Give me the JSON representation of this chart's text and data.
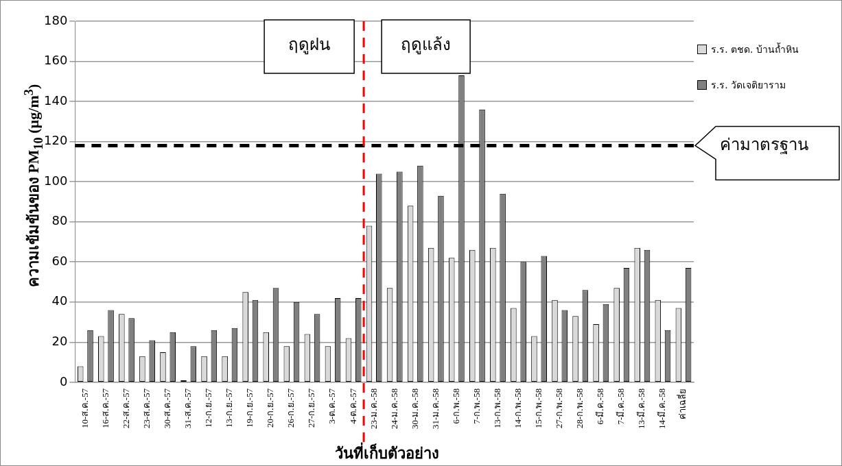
{
  "chart_data": {
    "type": "bar",
    "ylabel": "ความเข้มข้นของ PM$_{10}$ (µg/m$^{3}$)",
    "xlabel": "วันที่เก็บตัวอย่าง",
    "categories": [
      "10-ส.ค.-57",
      "16-ส.ค.-57",
      "22-ส.ค.-57",
      "23-ส.ค.-57",
      "30-ส.ค.-57",
      "31-ส.ค.-57",
      "12-ก.ย.-57",
      "13-ก.ย.-57",
      "19-ก.ย.-57",
      "20-ก.ย.-57",
      "26-ก.ย.-57",
      "27-ก.ย.-57",
      "3-ต.ค.-57",
      "4-ต.ค.-57",
      "23-ม.ค.-58",
      "24-ม.ค.-58",
      "30-ม.ค.-58",
      "31-ม.ค.-58",
      "6-ก.พ.-58",
      "7-ก.พ.-58",
      "13-ก.พ.-58",
      "14-ก.พ.-58",
      "15-ก.พ.-58",
      "27-ก.พ.-58",
      "28-ก.พ.-58",
      "6-มี.ค.-58",
      "7-มี.ค.-58",
      "13-มี.ค.-58",
      "14-มี.ค.-58",
      "ค่าเฉลี่ย"
    ],
    "series": [
      {
        "name": "ร.ร. ตชด. บ้านถ้ำหิน",
        "color": "#d9d9d9",
        "values": [
          8,
          23,
          34,
          13,
          15,
          1,
          13,
          13,
          45,
          25,
          18,
          24,
          18,
          22,
          78,
          47,
          88,
          67,
          62,
          66,
          67,
          37,
          23,
          41,
          33,
          29,
          47,
          67,
          41,
          37
        ]
      },
      {
        "name": "ร.ร. วัดเจติยาราม",
        "color": "#808080",
        "values": [
          26,
          36,
          32,
          21,
          25,
          18,
          26,
          27,
          41,
          47,
          40,
          34,
          42,
          42,
          104,
          105,
          108,
          93,
          153,
          136,
          94,
          60,
          63,
          36,
          46,
          39,
          57,
          66,
          26,
          57
        ]
      }
    ],
    "ylim": [
      0,
      180
    ],
    "yticks": [
      0,
      20,
      40,
      60,
      80,
      100,
      120,
      140,
      160,
      180
    ],
    "grid": "y",
    "legend": "top right",
    "ref_lines": [
      {
        "axis": "y",
        "value": 118,
        "label": "ค่ามาตรฐาน",
        "color": "#000000",
        "line_style": "dashed"
      },
      {
        "axis": "x",
        "value": "23-ม.ค.-58",
        "color": "#ff0000",
        "line_style": "dashed"
      }
    ],
    "annotations": [
      "ฤดูฝน",
      "ฤดูแล้ง"
    ]
  }
}
